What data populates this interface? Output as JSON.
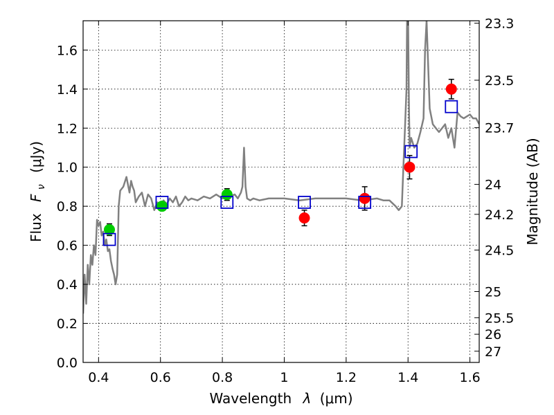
{
  "chart_data": {
    "type": "scatter",
    "title": "",
    "xlabel_text": "Wavelength",
    "xlabel_symbol": "λ",
    "xlabel_unit": "(μm)",
    "ylabel_text": "Flux",
    "ylabel_symbol_main": "F",
    "ylabel_symbol_sub": "ν",
    "ylabel_unit": "(μJy)",
    "y2label": "Magnitude (AB)",
    "xlim": [
      0.35,
      1.63
    ],
    "ylim": [
      0.0,
      1.75
    ],
    "grid": true,
    "x_ticks": [
      0.4,
      0.6,
      0.8,
      1.0,
      1.2,
      1.4,
      1.6
    ],
    "x_tick_labels": [
      "0.4",
      "0.6",
      "0.8",
      "1",
      "1.2",
      "1.4",
      "1.6"
    ],
    "y_ticks": [
      0.0,
      0.2,
      0.4,
      0.6,
      0.8,
      1.0,
      1.2,
      1.4,
      1.6
    ],
    "y_tick_labels": [
      "0.0",
      "0.2",
      "0.4",
      "0.6",
      "0.8",
      "1.0",
      "1.2",
      "1.4",
      "1.6"
    ],
    "y2_ticks": [
      23.3,
      23.5,
      23.7,
      24,
      24.2,
      24.5,
      25,
      25.5,
      26,
      27
    ],
    "y2_tick_labels": [
      "23.3",
      "23.5",
      "23.7",
      "24",
      "24.2",
      "24.5",
      "25",
      "25.5",
      "26",
      "27"
    ],
    "colors": {
      "model": "#808080",
      "ground": "#00cc00",
      "space": "#ff0000",
      "model_phot": "#0000cc",
      "errorbar": "#000000"
    },
    "model_spectrum": {
      "x": [
        0.35,
        0.355,
        0.36,
        0.365,
        0.37,
        0.375,
        0.38,
        0.385,
        0.39,
        0.395,
        0.4,
        0.405,
        0.41,
        0.415,
        0.42,
        0.425,
        0.43,
        0.435,
        0.44,
        0.445,
        0.45,
        0.455,
        0.46,
        0.465,
        0.47,
        0.48,
        0.49,
        0.5,
        0.505,
        0.51,
        0.515,
        0.52,
        0.53,
        0.54,
        0.55,
        0.56,
        0.57,
        0.58,
        0.59,
        0.6,
        0.61,
        0.62,
        0.63,
        0.64,
        0.65,
        0.66,
        0.67,
        0.68,
        0.69,
        0.7,
        0.72,
        0.74,
        0.76,
        0.78,
        0.8,
        0.82,
        0.84,
        0.85,
        0.86,
        0.865,
        0.87,
        0.875,
        0.88,
        0.89,
        0.9,
        0.92,
        0.95,
        1.0,
        1.05,
        1.1,
        1.15,
        1.2,
        1.25,
        1.3,
        1.32,
        1.34,
        1.36,
        1.37,
        1.38,
        1.385,
        1.39,
        1.395,
        1.397,
        1.4,
        1.403,
        1.405,
        1.41,
        1.42,
        1.43,
        1.44,
        1.45,
        1.455,
        1.46,
        1.47,
        1.48,
        1.49,
        1.5,
        1.51,
        1.52,
        1.53,
        1.54,
        1.55,
        1.56,
        1.57,
        1.58,
        1.59,
        1.6,
        1.61,
        1.62,
        1.63
      ],
      "y": [
        0.25,
        0.45,
        0.3,
        0.5,
        0.4,
        0.55,
        0.5,
        0.6,
        0.55,
        0.73,
        0.7,
        0.72,
        0.65,
        0.67,
        0.6,
        0.63,
        0.57,
        0.58,
        0.52,
        0.48,
        0.45,
        0.4,
        0.45,
        0.8,
        0.88,
        0.9,
        0.95,
        0.87,
        0.93,
        0.9,
        0.88,
        0.82,
        0.85,
        0.87,
        0.8,
        0.86,
        0.84,
        0.78,
        0.82,
        0.8,
        0.83,
        0.81,
        0.84,
        0.82,
        0.85,
        0.8,
        0.82,
        0.85,
        0.83,
        0.84,
        0.83,
        0.85,
        0.84,
        0.86,
        0.84,
        0.85,
        0.86,
        0.84,
        0.87,
        0.9,
        1.1,
        0.9,
        0.84,
        0.83,
        0.84,
        0.83,
        0.84,
        0.84,
        0.83,
        0.84,
        0.84,
        0.84,
        0.83,
        0.84,
        0.83,
        0.83,
        0.8,
        0.78,
        0.8,
        1.0,
        1.2,
        1.4,
        1.8,
        1.8,
        1.3,
        1.1,
        1.15,
        1.1,
        1.12,
        1.18,
        1.25,
        1.6,
        1.75,
        1.3,
        1.22,
        1.2,
        1.18,
        1.2,
        1.22,
        1.15,
        1.2,
        1.1,
        1.28,
        1.26,
        1.25,
        1.26,
        1.27,
        1.25,
        1.25,
        1.22
      ]
    },
    "model_photometry": {
      "x": [
        0.435,
        0.605,
        0.815,
        1.065,
        1.26,
        1.41,
        1.54
      ],
      "y": [
        0.63,
        0.82,
        0.82,
        0.82,
        0.82,
        1.08,
        1.31
      ]
    },
    "ground_photometry": {
      "x": [
        0.435,
        0.605,
        0.815
      ],
      "y": [
        0.68,
        0.8,
        0.86
      ],
      "err": [
        0.03,
        0.02,
        0.03
      ]
    },
    "space_photometry": {
      "x": [
        1.065,
        1.26,
        1.405,
        1.54
      ],
      "y": [
        0.74,
        0.84,
        1.0,
        1.4
      ],
      "err": [
        0.04,
        0.06,
        0.06,
        0.05
      ]
    }
  }
}
